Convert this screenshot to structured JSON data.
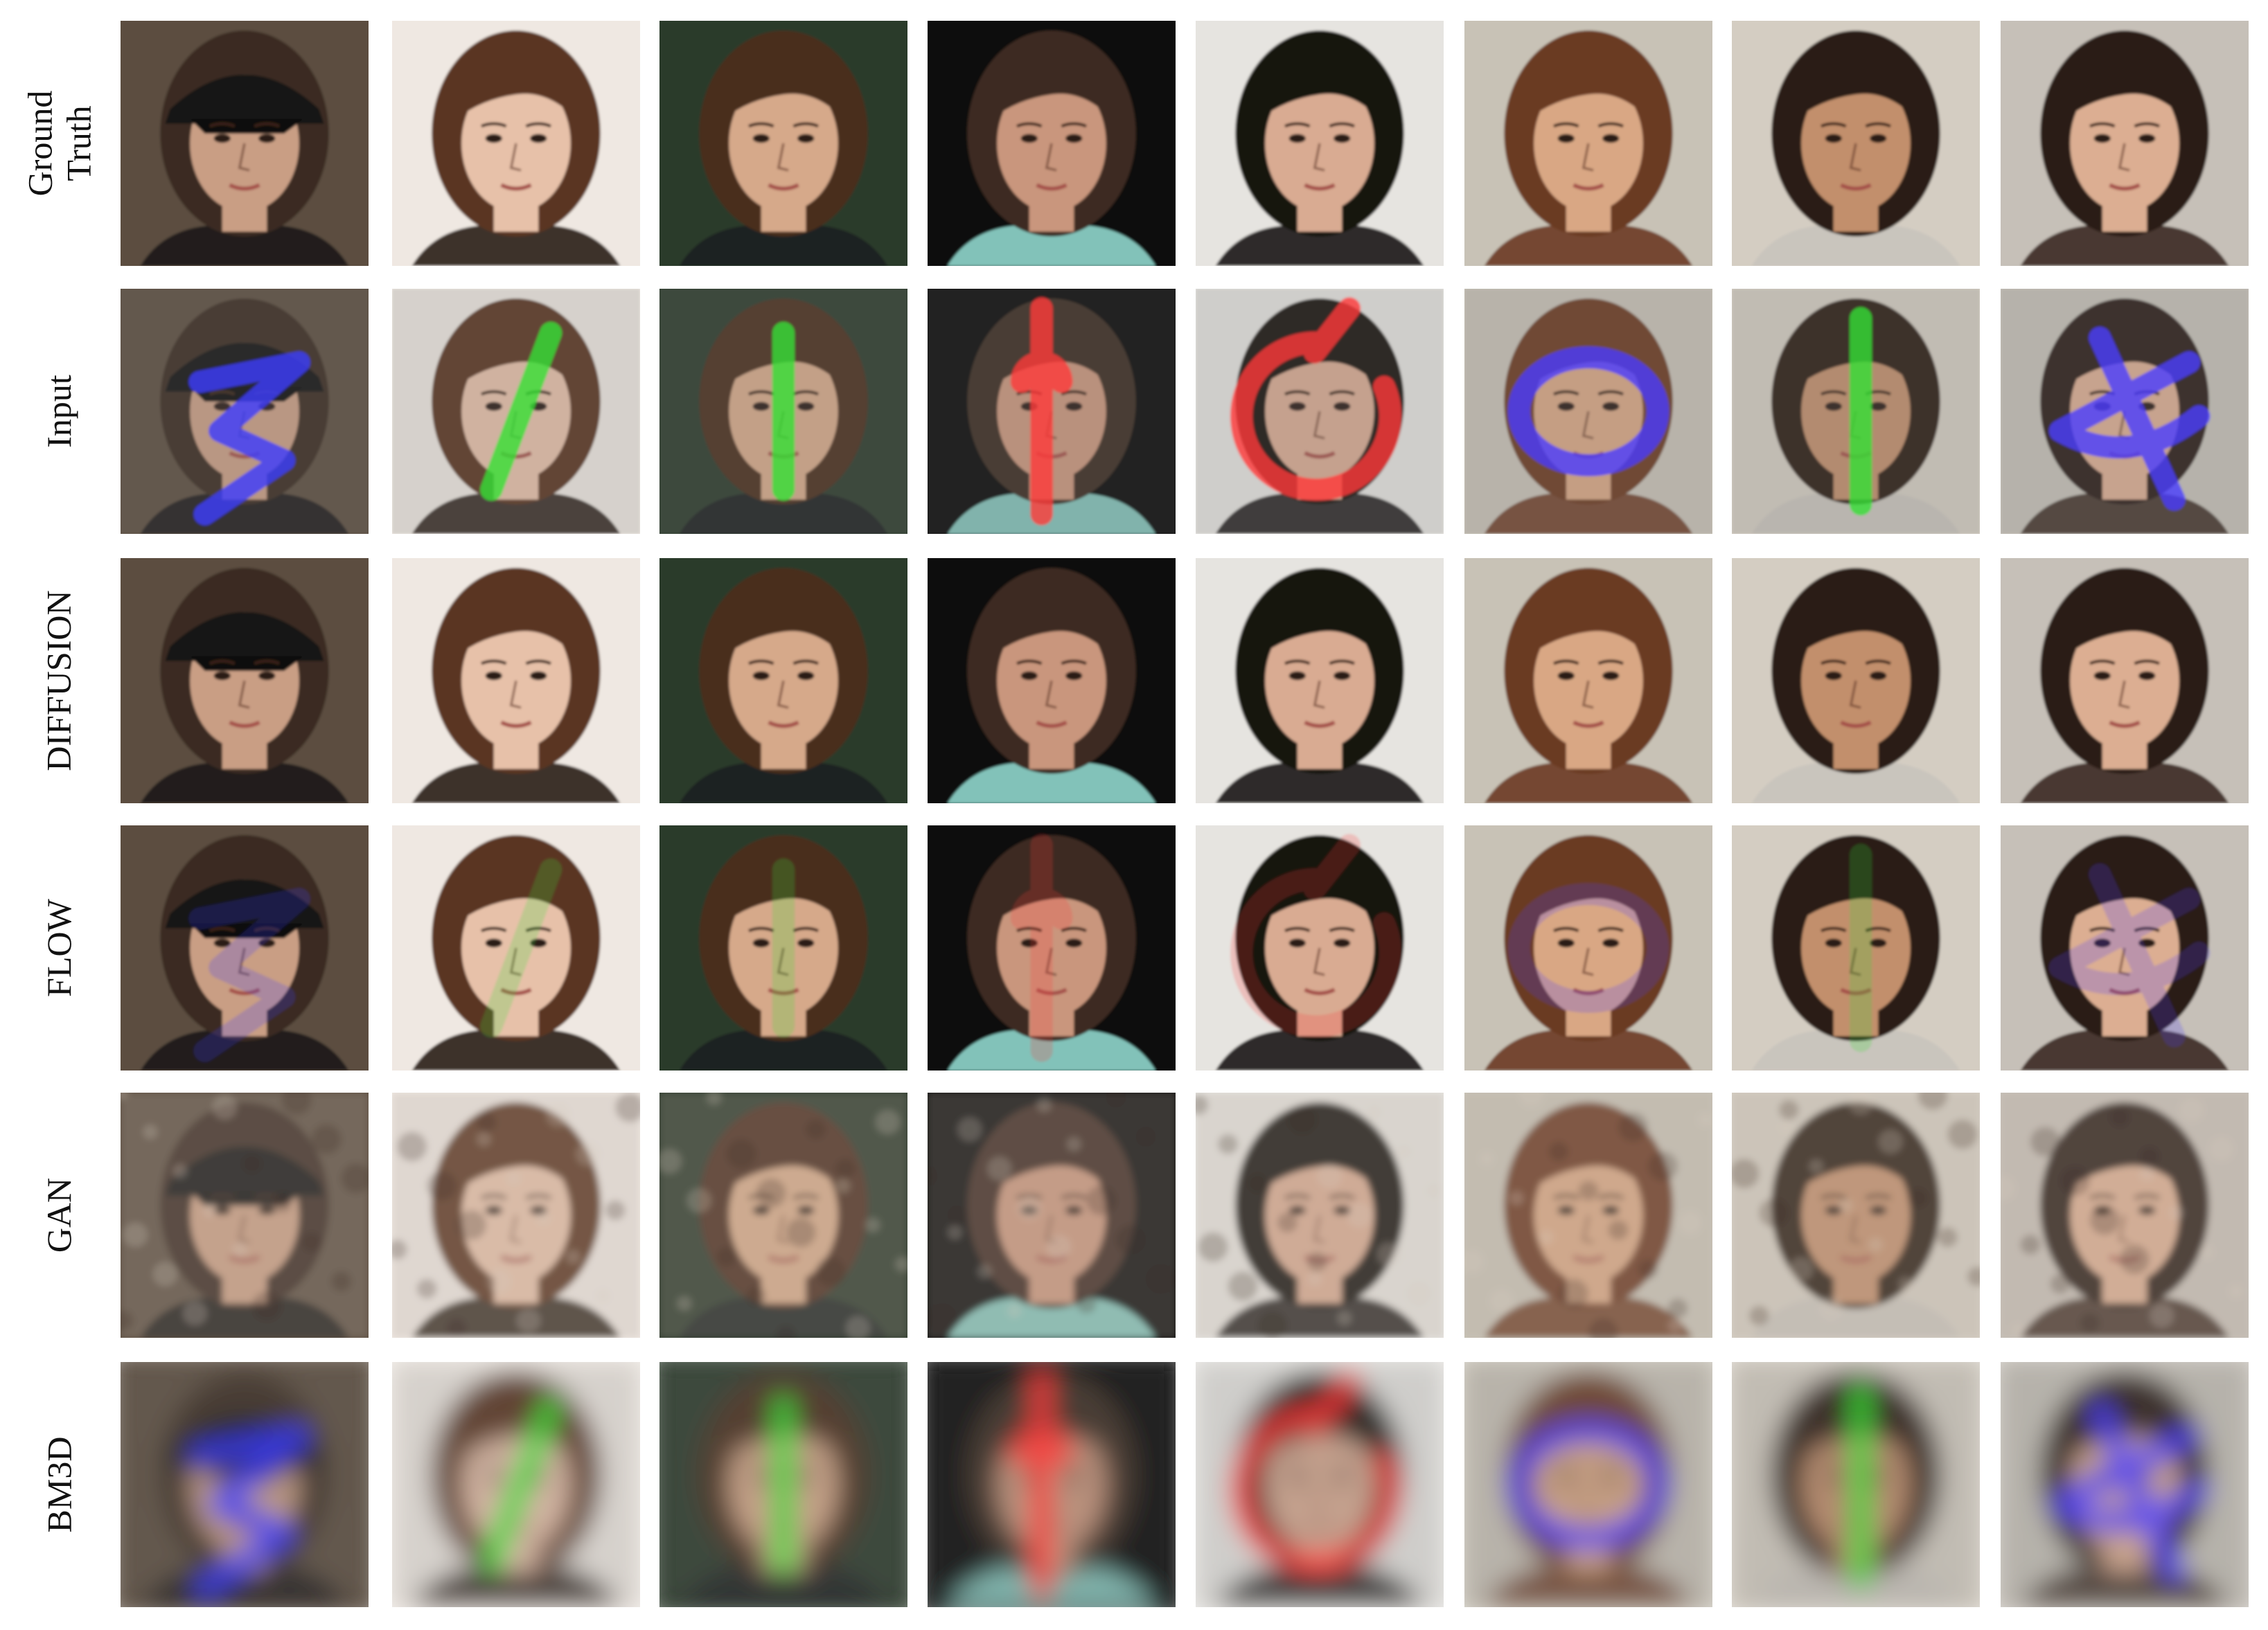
{
  "row_labels": [
    "Ground\nTruth",
    "Input",
    "DIFFUSION",
    "FLOW",
    "GAN",
    "BM3D"
  ],
  "columns": [
    {
      "bg": "#5b4e40",
      "skin": "#c99e84",
      "hair": "#3a2a22",
      "accent": "#1a1a1a",
      "mask": "#3c3cff",
      "cap": true
    },
    {
      "bg": "#efe8e2",
      "skin": "#e7c1a9",
      "hair": "#5a3520",
      "accent": "#2a1e18",
      "mask": "#35e035",
      "cap": false
    },
    {
      "bg": "#2a3a2a",
      "skin": "#d6a98a",
      "hair": "#4a2d1e",
      "accent": "#1a2020",
      "mask": "#35e035",
      "cap": false
    },
    {
      "bg": "#0a0a0a",
      "skin": "#c9967d",
      "hair": "#3c2a22",
      "accent": "#8fd6cc",
      "mask": "#ff3a3a",
      "cap": false
    },
    {
      "bg": "#e6e4e0",
      "skin": "#d9ab92",
      "hair": "#161210",
      "accent": "#1a1616",
      "mask": "#ff3a3a",
      "cap": false
    },
    {
      "bg": "#c8c2b6",
      "skin": "#d9a784",
      "hair": "#6b3a22",
      "accent": "#6b3a22",
      "mask": "#4a3cff",
      "cap": false
    },
    {
      "bg": "#d4cdc2",
      "skin": "#c28f6c",
      "hair": "#2a1c14",
      "accent": "#c8c4bc",
      "mask": "#35e035",
      "cap": false
    },
    {
      "bg": "#c6c0b8",
      "skin": "#dcae92",
      "hair": "#2a1e18",
      "accent": "#3a2a22",
      "mask": "#4a3cff",
      "cap": false
    }
  ],
  "row_styles": [
    {
      "mode": "gt"
    },
    {
      "mode": "input"
    },
    {
      "mode": "diffusion"
    },
    {
      "mode": "flow"
    },
    {
      "mode": "gan"
    },
    {
      "mode": "bm3d"
    }
  ]
}
